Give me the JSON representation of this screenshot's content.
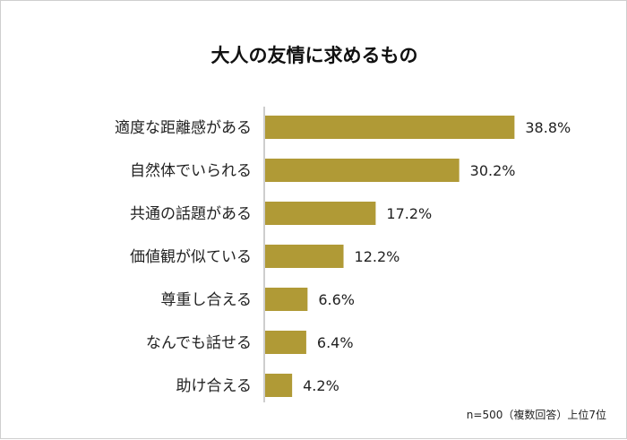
{
  "colors": {
    "bar": "#b09a36",
    "axis": "#bdbdbd"
  },
  "chart_data": {
    "type": "bar",
    "orientation": "horizontal",
    "title": "大人の友情に求めるもの",
    "categories": [
      "適度な距離感がある",
      "自然体でいられる",
      "共通の話題がある",
      "価値観が似ている",
      "尊重し合える",
      "なんでも話せる",
      "助け合える"
    ],
    "values": [
      38.8,
      30.2,
      17.2,
      12.2,
      6.6,
      6.4,
      4.2
    ],
    "value_labels": [
      "38.8%",
      "30.2%",
      "17.2%",
      "12.2%",
      "6.6%",
      "6.4%",
      "4.2%"
    ],
    "unit": "%",
    "xlim": [
      0,
      40
    ],
    "note": "n=500（複数回答）上位7位"
  }
}
